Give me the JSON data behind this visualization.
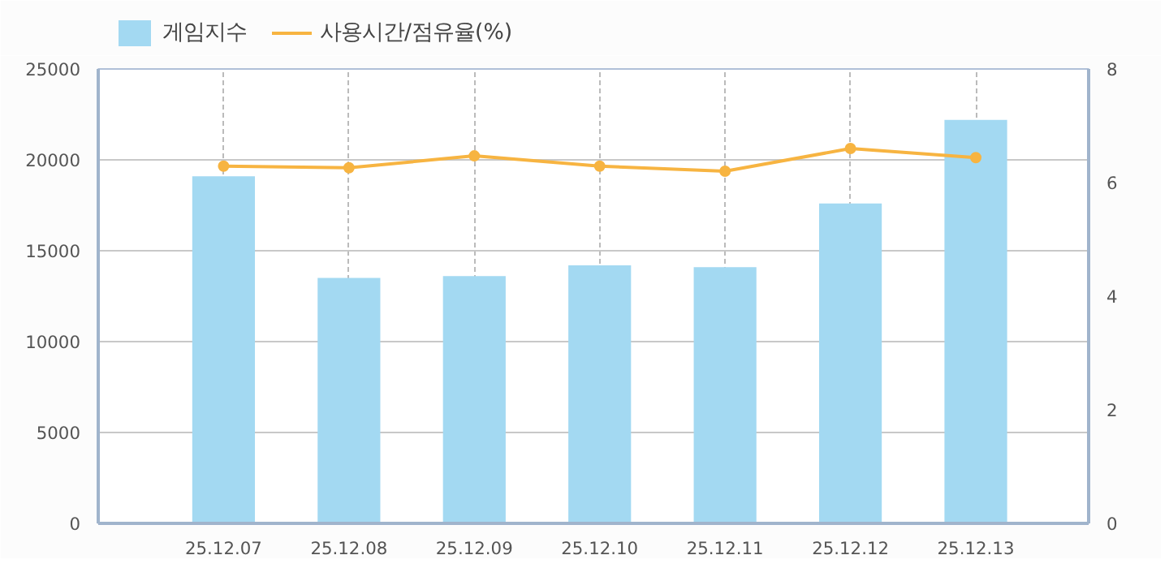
{
  "chart_data": {
    "type": "bar",
    "categories": [
      "25.12.07",
      "25.12.08",
      "25.12.09",
      "25.12.10",
      "25.12.11",
      "25.12.12",
      "25.12.13"
    ],
    "series": [
      {
        "name": "게임지수",
        "color": "#a3d9f2",
        "values": [
          19100,
          13500,
          13600,
          14200,
          14100,
          17600,
          22200
        ]
      },
      {
        "name": "사용시간/점유율(%)",
        "type": "line",
        "axis": "y2",
        "color": "#f7b441",
        "values": [
          6.29,
          6.26,
          6.47,
          6.29,
          6.2,
          6.6,
          6.44
        ]
      }
    ],
    "ylim": [
      0,
      25000
    ],
    "yticks": [
      0,
      5000,
      10000,
      15000,
      20000,
      25000
    ],
    "y2lim": [
      0,
      8
    ],
    "y2ticks": [
      0,
      2,
      4,
      6,
      8
    ],
    "grid": true,
    "legend": "top left",
    "marker": "circle",
    "line_style": "solid"
  }
}
